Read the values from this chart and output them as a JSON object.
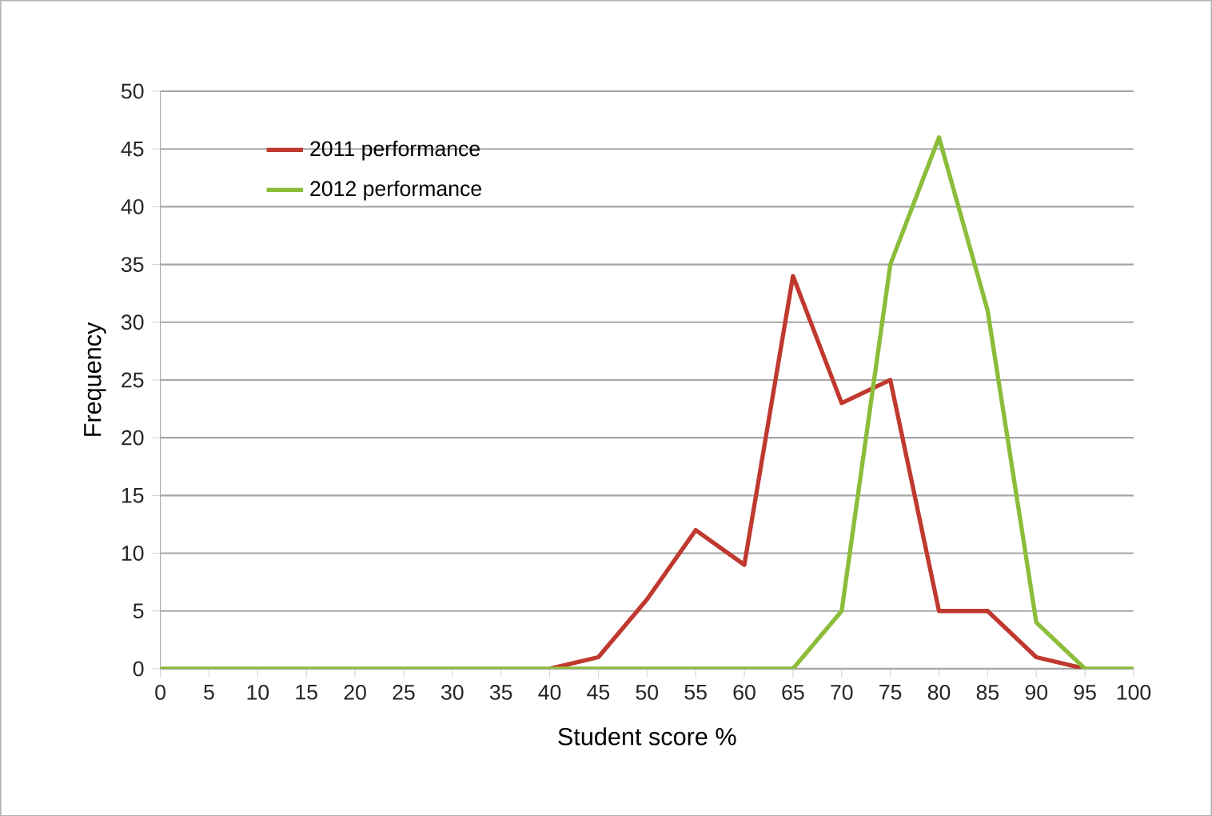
{
  "chart_data": {
    "type": "line",
    "xlabel": "Student score %",
    "ylabel": "Frequency",
    "categories": [
      "0",
      "5",
      "10",
      "15",
      "20",
      "25",
      "30",
      "35",
      "40",
      "45",
      "50",
      "55",
      "60",
      "65",
      "70",
      "75",
      "80",
      "85",
      "90",
      "95",
      "100"
    ],
    "series": [
      {
        "name": "2011 performance",
        "color": "#c0392f",
        "values": [
          null,
          null,
          null,
          null,
          null,
          null,
          null,
          null,
          0,
          1,
          6,
          12,
          9,
          34,
          23,
          25,
          5,
          5,
          1,
          0,
          null
        ]
      },
      {
        "name": "2012 performance",
        "color": "#8bbd3a",
        "values": [
          0,
          0,
          0,
          0,
          0,
          0,
          0,
          0,
          0,
          0,
          0,
          0,
          0,
          0,
          5,
          35,
          46,
          31,
          4,
          0,
          0
        ]
      }
    ],
    "ylim": [
      0,
      50
    ],
    "yticks": [
      0,
      5,
      10,
      15,
      20,
      25,
      30,
      35,
      40,
      45,
      50
    ],
    "grid": "y",
    "legend": "top left",
    "marker": "none",
    "line_style": "solid"
  }
}
